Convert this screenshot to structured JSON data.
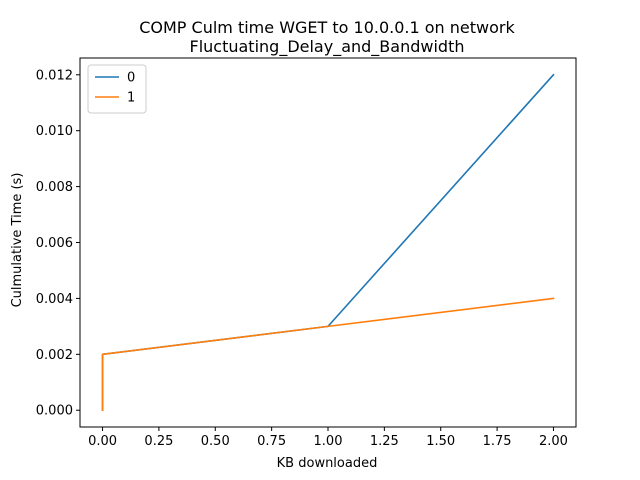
{
  "chart_data": {
    "type": "line",
    "title": "COMP Culm time WGET to 10.0.0.1 on network",
    "subtitle": "Fluctuating_Delay_and_Bandwidth",
    "xlabel": "KB downloaded",
    "ylabel": "Culmulative Time (s)",
    "xlim": [
      -0.1,
      2.1
    ],
    "ylim": [
      -0.0006,
      0.0126
    ],
    "xticks": [
      0.0,
      0.25,
      0.5,
      0.75,
      1.0,
      1.25,
      1.5,
      1.75,
      2.0
    ],
    "xtick_labels": [
      "0.00",
      "0.25",
      "0.50",
      "0.75",
      "1.00",
      "1.25",
      "1.50",
      "1.75",
      "2.00"
    ],
    "yticks": [
      0.0,
      0.002,
      0.004,
      0.006,
      0.008,
      0.01,
      0.012
    ],
    "ytick_labels": [
      "0.000",
      "0.002",
      "0.004",
      "0.006",
      "0.008",
      "0.010",
      "0.012"
    ],
    "grid": false,
    "legend_position": "top-left",
    "series": [
      {
        "name": "0",
        "color": "#1f77b4",
        "x": [
          0,
          0,
          1,
          2
        ],
        "y": [
          0,
          0.002,
          0.003,
          0.012
        ]
      },
      {
        "name": "1",
        "color": "#ff7f0e",
        "x": [
          0,
          0,
          1,
          2
        ],
        "y": [
          0,
          0.002,
          0.003,
          0.004
        ]
      }
    ]
  }
}
